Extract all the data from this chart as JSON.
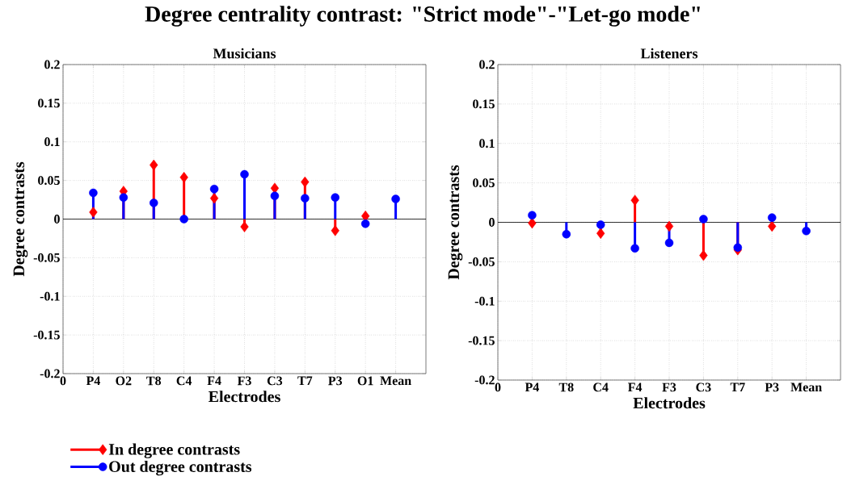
{
  "chart_data": [
    {
      "type": "lollipop",
      "title": "Degree centrality contrast: \"Strict mode\"-\"Let-go mode\"",
      "subtitle": "Musicians",
      "xlabel": "Electrodes",
      "ylabel": "Degree contrasts",
      "categories": [
        "0",
        "P4",
        "O2",
        "T8",
        "C4",
        "F4",
        "F3",
        "C3",
        "T7",
        "P3",
        "O1",
        "Mean"
      ],
      "ylim": [
        -0.2,
        0.2
      ],
      "yticks": [
        -0.2,
        -0.15,
        -0.1,
        -0.05,
        0,
        0.05,
        0.1,
        0.15,
        0.2
      ],
      "grid": true,
      "legend": "bottom left",
      "series": [
        {
          "name": "In degree contrasts",
          "color": "#ff0000",
          "marker": "diamond",
          "values": [
            null,
            0.009,
            0.036,
            0.07,
            0.054,
            0.027,
            -0.01,
            0.04,
            0.048,
            -0.015,
            0.004,
            null
          ]
        },
        {
          "name": "Out degree contrasts",
          "color": "#0000ff",
          "marker": "circle",
          "values": [
            null,
            0.034,
            0.028,
            0.021,
            0.0,
            0.039,
            0.058,
            0.03,
            0.027,
            0.028,
            -0.006,
            0.026
          ]
        }
      ]
    },
    {
      "type": "lollipop",
      "title": "Listeners",
      "xlabel": "Electrodes",
      "ylabel": "Degree contrasts",
      "categories": [
        "0",
        "P4",
        "T8",
        "C4",
        "F4",
        "F3",
        "C3",
        "T7",
        "P3",
        "Mean"
      ],
      "ylim": [
        -0.2,
        0.2
      ],
      "yticks": [
        -0.2,
        -0.15,
        -0.1,
        -0.05,
        0,
        0.05,
        0.1,
        0.15,
        0.2
      ],
      "grid": true,
      "series": [
        {
          "color": "#ff0000",
          "marker": "diamond",
          "values": [
            null,
            -0.001,
            null,
            -0.014,
            0.028,
            -0.005,
            -0.042,
            -0.035,
            -0.005,
            null
          ]
        },
        {
          "color": "#0000ff",
          "marker": "circle",
          "values": [
            null,
            0.009,
            -0.015,
            -0.003,
            -0.033,
            -0.026,
            0.004,
            -0.032,
            0.006,
            -0.011
          ]
        }
      ]
    }
  ]
}
